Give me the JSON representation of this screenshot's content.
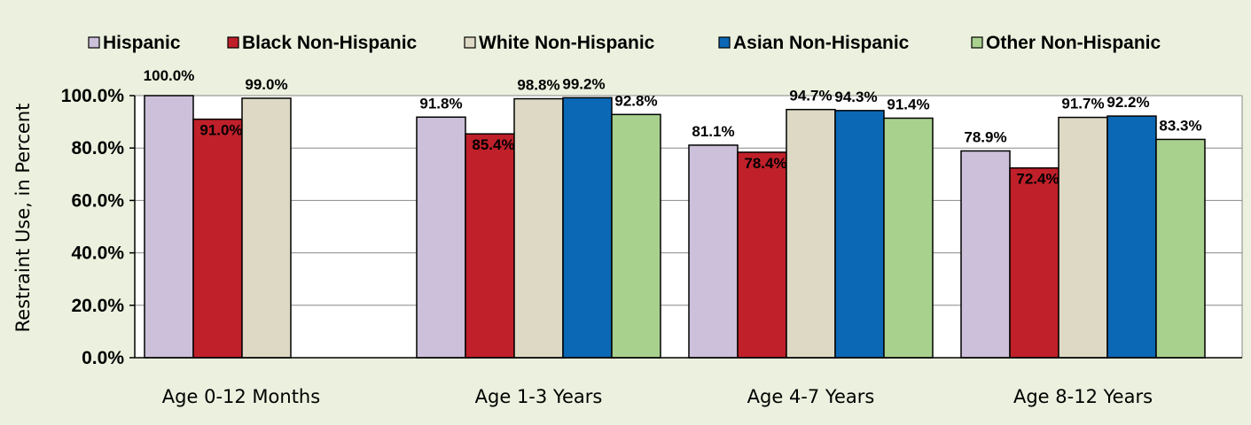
{
  "chart_data": {
    "type": "bar",
    "title": "",
    "xlabel": "",
    "ylabel": "Restraint Use, in Percent",
    "ylim": [
      0,
      100
    ],
    "yticks": [
      "0.0%",
      "20.0%",
      "40.0%",
      "60.0%",
      "80.0%",
      "100.0%"
    ],
    "grid": true,
    "legend_position": "top",
    "categories": [
      "Age 0-12 Months",
      "Age 1-3 Years",
      "Age 4-7 Years",
      "Age 8-12 Years"
    ],
    "series": [
      {
        "name": "Hispanic",
        "color": "#CCC0DA",
        "values": [
          100.0,
          91.8,
          81.1,
          78.9
        ],
        "labels": [
          "100.0%",
          "91.8%",
          "81.1%",
          "78.9%"
        ]
      },
      {
        "name": "Black Non-Hispanic",
        "color": "#C0202A",
        "values": [
          91.0,
          85.4,
          78.4,
          72.4
        ],
        "labels": [
          "91.0%",
          "85.4%",
          "78.4%",
          "72.4%"
        ]
      },
      {
        "name": "White Non-Hispanic",
        "color": "#DDD9C4",
        "values": [
          99.0,
          98.8,
          94.7,
          91.7
        ],
        "labels": [
          "99.0%",
          "98.8%",
          "94.7%",
          "91.7%"
        ]
      },
      {
        "name": "Asian Non-Hispanic",
        "color": "#0B68B5",
        "values": [
          null,
          99.2,
          94.3,
          92.2
        ],
        "labels": [
          null,
          "99.2%",
          "94.3%",
          "92.2%"
        ]
      },
      {
        "name": "Other Non-Hispanic",
        "color": "#A9D18E",
        "values": [
          null,
          92.8,
          91.4,
          83.3
        ],
        "labels": [
          null,
          "92.8%",
          "91.4%",
          "83.3%"
        ]
      }
    ]
  },
  "style": {
    "background": "#EBF1DE",
    "plot_background": "#FFFFFF",
    "gridline_color": "#888888",
    "bar_outline": "#000000"
  }
}
